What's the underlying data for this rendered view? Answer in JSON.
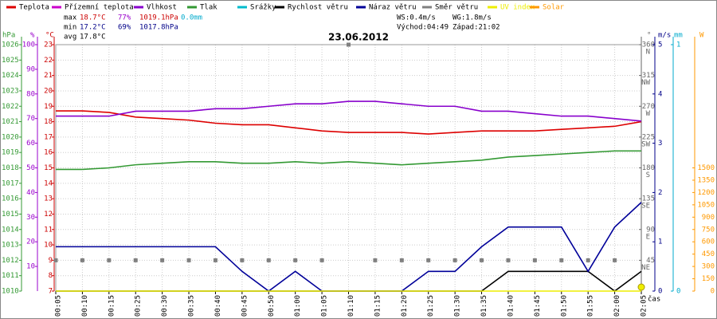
{
  "chart_data": {
    "type": "line",
    "title": "23.06.2012",
    "x_label": "čas",
    "categories": [
      "00:05",
      "00:10",
      "00:15",
      "00:25",
      "00:30",
      "00:35",
      "00:40",
      "00:45",
      "00:50",
      "01:00",
      "01:05",
      "01:10",
      "01:15",
      "01:20",
      "01:25",
      "01:30",
      "01:35",
      "01:40",
      "01:45",
      "01:50",
      "01:55",
      "02:00",
      "02:05"
    ],
    "grid": true,
    "axes": [
      {
        "label": "hPa",
        "color": "#339933",
        "lim": [
          1010,
          1026
        ],
        "ticks": [
          1010,
          1011,
          1012,
          1013,
          1014,
          1015,
          1016,
          1017,
          1018,
          1019,
          1020,
          1021,
          1022,
          1023,
          1024,
          1025,
          1026
        ]
      },
      {
        "label": "%",
        "color": "#9900cc",
        "lim": [
          0,
          100
        ],
        "ticks": [
          10,
          20,
          30,
          40,
          50,
          60,
          70,
          80,
          90,
          100
        ]
      },
      {
        "label": "°C",
        "color": "#cc0000",
        "lim": [
          7,
          23
        ],
        "ticks": [
          7,
          8,
          9,
          10,
          11,
          12,
          13,
          14,
          15,
          16,
          17,
          18,
          19,
          20,
          21,
          22,
          23
        ]
      },
      {
        "label": "°",
        "color": "#666666",
        "lim": [
          0,
          360
        ],
        "ticks": [
          45,
          90,
          135,
          180,
          225,
          270,
          315,
          360
        ],
        "compass": [
          "NE",
          "E",
          "SE",
          "S",
          "SW",
          "W",
          "NW",
          "N"
        ]
      },
      {
        "label": "m/s",
        "color": "#000088",
        "lim": [
          0,
          5
        ],
        "ticks": [
          0,
          1,
          2,
          3,
          4,
          5
        ]
      },
      {
        "label": "mm",
        "color": "#00aacc",
        "lim": [
          0,
          1
        ],
        "ticks": [
          0,
          1
        ]
      },
      {
        "label": "W",
        "color": "#ff9900",
        "lim": [
          0,
          3000
        ],
        "ticks": [
          0,
          150,
          300,
          450,
          600,
          750,
          900,
          1050,
          1200,
          1350,
          1500
        ]
      }
    ],
    "series": [
      {
        "name": "Teplota",
        "color": "#dd0000",
        "axis": 2,
        "kind": "line",
        "values": [
          18.7,
          18.7,
          18.6,
          18.3,
          18.2,
          18.1,
          17.9,
          17.8,
          17.8,
          17.6,
          17.4,
          17.3,
          17.3,
          17.3,
          17.2,
          17.3,
          17.4,
          17.4,
          17.4,
          17.5,
          17.6,
          17.7,
          18.0
        ]
      },
      {
        "name": "Přízemní teplota",
        "color": "#cc00cc"
      },
      {
        "name": "Vlhkost",
        "color": "#8800cc",
        "axis": 1,
        "kind": "line",
        "values": [
          71,
          71,
          71,
          73,
          73,
          73,
          74,
          74,
          75,
          76,
          76,
          77,
          77,
          76,
          75,
          75,
          73,
          73,
          72,
          71,
          71,
          70,
          69
        ]
      },
      {
        "name": "Tlak",
        "color": "#339933",
        "axis": 0,
        "kind": "line",
        "values": [
          1017.9,
          1017.9,
          1018.0,
          1018.2,
          1018.3,
          1018.4,
          1018.4,
          1018.3,
          1018.3,
          1018.4,
          1018.3,
          1018.4,
          1018.3,
          1018.2,
          1018.3,
          1018.4,
          1018.5,
          1018.7,
          1018.8,
          1018.9,
          1019.0,
          1019.1,
          1019.1
        ]
      },
      {
        "name": "Srážky",
        "color": "#00bbcc"
      },
      {
        "name": "Rychlost větru",
        "color": "#000000",
        "axis": 4,
        "kind": "line",
        "values": [
          0,
          0,
          0,
          0,
          0,
          0,
          0,
          0,
          0,
          0,
          0,
          0,
          0,
          0,
          0,
          0,
          0,
          0.4,
          0.4,
          0.4,
          0.4,
          0,
          0.4
        ]
      },
      {
        "name": "Náraz větru",
        "color": "#000099",
        "axis": 4,
        "kind": "line",
        "values": [
          0.9,
          0.9,
          0.9,
          0.9,
          0.9,
          0.9,
          0.9,
          0.4,
          0,
          0.4,
          0,
          0,
          0,
          0,
          0.4,
          0.4,
          0.9,
          1.3,
          1.3,
          1.3,
          0.4,
          1.3,
          1.8
        ]
      },
      {
        "name": "Směr větru",
        "color": "#808080",
        "axis": 3,
        "kind": "markers",
        "values": [
          45,
          45,
          45,
          45,
          45,
          45,
          45,
          45,
          45,
          45,
          45,
          360,
          45,
          45,
          45,
          45,
          45,
          45,
          45,
          45,
          45,
          45,
          null
        ]
      },
      {
        "name": "UV index",
        "color": "#eeee00",
        "axis": 6,
        "kind": "uv",
        "values": [
          0,
          0,
          0,
          0,
          0,
          0,
          0,
          0,
          0,
          0,
          0,
          0,
          0,
          0,
          0,
          0,
          0,
          0,
          0,
          0,
          0,
          0,
          0
        ]
      },
      {
        "name": "Solar",
        "color": "#ff9900"
      }
    ],
    "stats": {
      "max": {
        "label": "max",
        "temp": "18.7°C",
        "hum": "77%",
        "press": "1019.1hPa",
        "rain": "0.0mm"
      },
      "min": {
        "label": "min",
        "temp": "17.2°C",
        "hum": "69%",
        "press": "1017.8hPa"
      },
      "avg": {
        "label": "avg",
        "temp": "17.8°C"
      }
    },
    "wind": {
      "ws": "WS:0.4m/s",
      "wg": "WG:1.8m/s",
      "sunrise": "Východ:04:49",
      "sunset": "Západ:21:02"
    }
  }
}
